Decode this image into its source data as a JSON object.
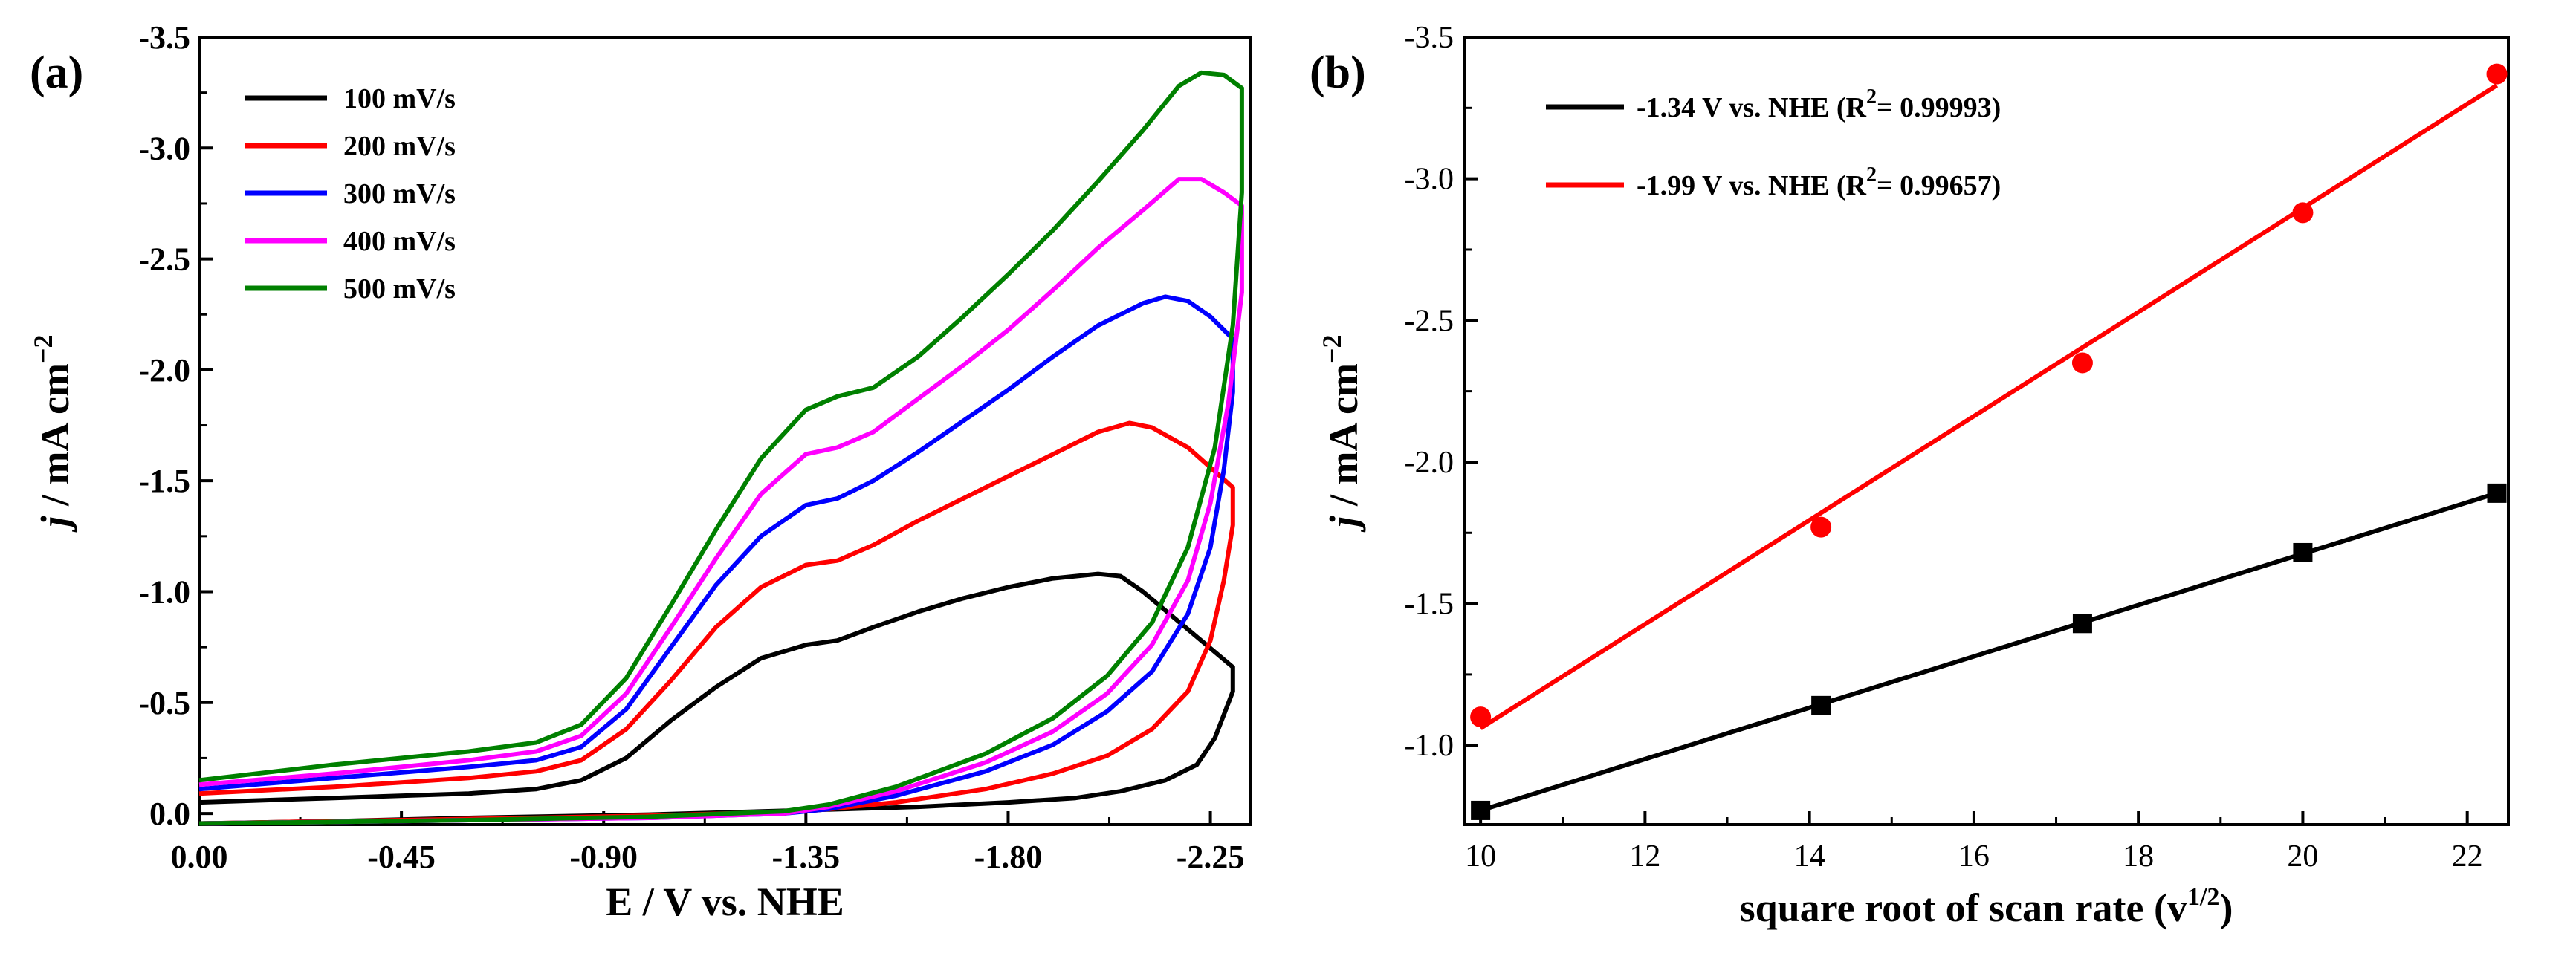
{
  "chart_data": [
    {
      "type": "line",
      "panel_label": "(a)",
      "xlabel": "E / V vs. NHE",
      "ylabel_parts": [
        "j",
        " / mA cm",
        "−2"
      ],
      "xlim": [
        0.0,
        -2.34
      ],
      "ylim": [
        0.05,
        -3.5
      ],
      "xticks": [
        0.0,
        -0.45,
        -0.9,
        -1.35,
        -1.8,
        -2.25
      ],
      "xtick_labels": [
        "0.00",
        "-0.45",
        "-0.90",
        "-1.35",
        "-1.80",
        "-2.25"
      ],
      "yticks": [
        0.0,
        -0.5,
        -1.0,
        -1.5,
        -2.0,
        -2.5,
        -3.0,
        -3.5
      ],
      "ytick_labels": [
        "0.0",
        "-0.5",
        "-1.0",
        "-1.5",
        "-2.0",
        "-2.5",
        "-3.0",
        "-3.5"
      ],
      "legend_position": "top-left",
      "series": [
        {
          "name": "100 mV/s",
          "color": "#000000",
          "points": [
            [
              0.0,
              -0.05
            ],
            [
              -0.3,
              -0.07
            ],
            [
              -0.6,
              -0.09
            ],
            [
              -0.75,
              -0.11
            ],
            [
              -0.85,
              -0.15
            ],
            [
              -0.95,
              -0.25
            ],
            [
              -1.05,
              -0.42
            ],
            [
              -1.15,
              -0.57
            ],
            [
              -1.25,
              -0.7
            ],
            [
              -1.35,
              -0.76
            ],
            [
              -1.42,
              -0.78
            ],
            [
              -1.5,
              -0.84
            ],
            [
              -1.6,
              -0.91
            ],
            [
              -1.7,
              -0.97
            ],
            [
              -1.8,
              -1.02
            ],
            [
              -1.9,
              -1.06
            ],
            [
              -2.0,
              -1.08
            ],
            [
              -2.05,
              -1.07
            ],
            [
              -2.1,
              -1.0
            ],
            [
              -2.2,
              -0.83
            ],
            [
              -2.3,
              -0.66
            ],
            [
              -2.3,
              -0.55
            ],
            [
              -2.26,
              -0.34
            ],
            [
              -2.22,
              -0.22
            ],
            [
              -2.15,
              -0.15
            ],
            [
              -2.05,
              -0.1
            ],
            [
              -1.95,
              -0.07
            ],
            [
              -1.8,
              -0.05
            ],
            [
              -1.6,
              -0.03
            ],
            [
              -1.35,
              -0.015
            ],
            [
              -1.0,
              0.005
            ],
            [
              -0.6,
              0.02
            ],
            [
              -0.3,
              0.035
            ],
            [
              0.0,
              0.045
            ]
          ]
        },
        {
          "name": "200 mV/s",
          "color": "#ff0000",
          "points": [
            [
              0.0,
              -0.09
            ],
            [
              -0.3,
              -0.12
            ],
            [
              -0.6,
              -0.16
            ],
            [
              -0.75,
              -0.19
            ],
            [
              -0.85,
              -0.24
            ],
            [
              -0.95,
              -0.38
            ],
            [
              -1.05,
              -0.6
            ],
            [
              -1.15,
              -0.84
            ],
            [
              -1.25,
              -1.02
            ],
            [
              -1.35,
              -1.12
            ],
            [
              -1.42,
              -1.14
            ],
            [
              -1.5,
              -1.21
            ],
            [
              -1.6,
              -1.32
            ],
            [
              -1.7,
              -1.42
            ],
            [
              -1.8,
              -1.52
            ],
            [
              -1.9,
              -1.62
            ],
            [
              -2.0,
              -1.72
            ],
            [
              -2.07,
              -1.76
            ],
            [
              -2.12,
              -1.74
            ],
            [
              -2.2,
              -1.65
            ],
            [
              -2.3,
              -1.47
            ],
            [
              -2.3,
              -1.3
            ],
            [
              -2.28,
              -1.05
            ],
            [
              -2.25,
              -0.78
            ],
            [
              -2.2,
              -0.55
            ],
            [
              -2.12,
              -0.38
            ],
            [
              -2.02,
              -0.26
            ],
            [
              -1.9,
              -0.18
            ],
            [
              -1.75,
              -0.11
            ],
            [
              -1.55,
              -0.05
            ],
            [
              -1.35,
              -0.01
            ],
            [
              -1.0,
              0.01
            ],
            [
              -0.6,
              0.025
            ],
            [
              -0.3,
              0.035
            ],
            [
              0.0,
              0.045
            ]
          ]
        },
        {
          "name": "300 mV/s",
          "color": "#0000ff",
          "points": [
            [
              0.0,
              -0.11
            ],
            [
              -0.3,
              -0.16
            ],
            [
              -0.6,
              -0.21
            ],
            [
              -0.75,
              -0.24
            ],
            [
              -0.85,
              -0.3
            ],
            [
              -0.95,
              -0.47
            ],
            [
              -1.05,
              -0.75
            ],
            [
              -1.15,
              -1.03
            ],
            [
              -1.25,
              -1.25
            ],
            [
              -1.35,
              -1.39
            ],
            [
              -1.42,
              -1.42
            ],
            [
              -1.5,
              -1.5
            ],
            [
              -1.6,
              -1.63
            ],
            [
              -1.7,
              -1.77
            ],
            [
              -1.8,
              -1.91
            ],
            [
              -1.9,
              -2.06
            ],
            [
              -2.0,
              -2.2
            ],
            [
              -2.1,
              -2.3
            ],
            [
              -2.15,
              -2.33
            ],
            [
              -2.2,
              -2.31
            ],
            [
              -2.25,
              -2.24
            ],
            [
              -2.3,
              -2.14
            ],
            [
              -2.3,
              -1.9
            ],
            [
              -2.28,
              -1.55
            ],
            [
              -2.25,
              -1.2
            ],
            [
              -2.2,
              -0.9
            ],
            [
              -2.12,
              -0.64
            ],
            [
              -2.02,
              -0.46
            ],
            [
              -1.9,
              -0.31
            ],
            [
              -1.75,
              -0.19
            ],
            [
              -1.55,
              -0.08
            ],
            [
              -1.4,
              -0.02
            ],
            [
              -1.3,
              0.0
            ],
            [
              -1.0,
              0.02
            ],
            [
              -0.6,
              0.03
            ],
            [
              -0.3,
              0.038
            ],
            [
              0.0,
              0.045
            ]
          ]
        },
        {
          "name": "400 mV/s",
          "color": "#ff00ff",
          "points": [
            [
              0.0,
              -0.13
            ],
            [
              -0.3,
              -0.18
            ],
            [
              -0.6,
              -0.24
            ],
            [
              -0.75,
              -0.28
            ],
            [
              -0.85,
              -0.35
            ],
            [
              -0.95,
              -0.54
            ],
            [
              -1.05,
              -0.84
            ],
            [
              -1.15,
              -1.15
            ],
            [
              -1.25,
              -1.44
            ],
            [
              -1.35,
              -1.62
            ],
            [
              -1.42,
              -1.65
            ],
            [
              -1.5,
              -1.72
            ],
            [
              -1.6,
              -1.87
            ],
            [
              -1.7,
              -2.02
            ],
            [
              -1.8,
              -2.18
            ],
            [
              -1.9,
              -2.36
            ],
            [
              -2.0,
              -2.55
            ],
            [
              -2.1,
              -2.72
            ],
            [
              -2.18,
              -2.86
            ],
            [
              -2.23,
              -2.86
            ],
            [
              -2.28,
              -2.8
            ],
            [
              -2.32,
              -2.74
            ],
            [
              -2.32,
              -2.35
            ],
            [
              -2.29,
              -1.85
            ],
            [
              -2.25,
              -1.4
            ],
            [
              -2.2,
              -1.05
            ],
            [
              -2.12,
              -0.76
            ],
            [
              -2.02,
              -0.54
            ],
            [
              -1.9,
              -0.37
            ],
            [
              -1.75,
              -0.23
            ],
            [
              -1.55,
              -0.1
            ],
            [
              -1.4,
              -0.03
            ],
            [
              -1.3,
              0.0
            ],
            [
              -1.0,
              0.02
            ],
            [
              -0.6,
              0.03
            ],
            [
              -0.3,
              0.038
            ],
            [
              0.0,
              0.045
            ]
          ]
        },
        {
          "name": "500 mV/s",
          "color": "#008000",
          "points": [
            [
              0.0,
              -0.15
            ],
            [
              -0.3,
              -0.22
            ],
            [
              -0.6,
              -0.28
            ],
            [
              -0.75,
              -0.32
            ],
            [
              -0.85,
              -0.4
            ],
            [
              -0.95,
              -0.61
            ],
            [
              -1.05,
              -0.94
            ],
            [
              -1.15,
              -1.28
            ],
            [
              -1.25,
              -1.6
            ],
            [
              -1.35,
              -1.82
            ],
            [
              -1.42,
              -1.88
            ],
            [
              -1.5,
              -1.92
            ],
            [
              -1.6,
              -2.06
            ],
            [
              -1.7,
              -2.24
            ],
            [
              -1.8,
              -2.43
            ],
            [
              -1.9,
              -2.63
            ],
            [
              -2.0,
              -2.85
            ],
            [
              -2.1,
              -3.08
            ],
            [
              -2.18,
              -3.28
            ],
            [
              -2.23,
              -3.34
            ],
            [
              -2.28,
              -3.33
            ],
            [
              -2.32,
              -3.27
            ],
            [
              -2.32,
              -2.8
            ],
            [
              -2.3,
              -2.2
            ],
            [
              -2.26,
              -1.65
            ],
            [
              -2.2,
              -1.2
            ],
            [
              -2.12,
              -0.86
            ],
            [
              -2.02,
              -0.62
            ],
            [
              -1.9,
              -0.43
            ],
            [
              -1.75,
              -0.27
            ],
            [
              -1.55,
              -0.12
            ],
            [
              -1.4,
              -0.04
            ],
            [
              -1.3,
              -0.01
            ],
            [
              -1.0,
              0.015
            ],
            [
              -0.6,
              0.03
            ],
            [
              -0.3,
              0.038
            ],
            [
              0.0,
              0.045
            ]
          ]
        }
      ]
    },
    {
      "type": "scatter",
      "panel_label": "(b)",
      "xlabel_parts": [
        "square root of scan rate (v",
        "1/2",
        ")"
      ],
      "ylabel_parts": [
        "j",
        " / mA cm",
        "−2"
      ],
      "xlim": [
        9.8,
        22.5
      ],
      "ylim": [
        -0.72,
        -3.5
      ],
      "xticks": [
        10,
        12,
        14,
        16,
        18,
        20,
        22
      ],
      "xtick_labels": [
        "10",
        "12",
        "14",
        "16",
        "18",
        "20",
        "22"
      ],
      "yticks": [
        -1.0,
        -1.5,
        -2.0,
        -2.5,
        -3.0,
        -3.5
      ],
      "ytick_labels": [
        "-1.0",
        "-1.5",
        "-2.0",
        "-2.5",
        "-3.0",
        "-3.5"
      ],
      "legend_position": "top-left",
      "series": [
        {
          "name_parts": [
            "-1.34 V vs. NHE (R",
            "2",
            "= 0.99993)"
          ],
          "color": "#000000",
          "marker": "square",
          "x": [
            10.0,
            14.14,
            17.32,
            20.0,
            22.36
          ],
          "y": [
            -0.77,
            -1.14,
            -1.43,
            -1.68,
            -1.89
          ],
          "fit": [
            [
              10.0,
              -0.77
            ],
            [
              22.36,
              -1.89
            ]
          ]
        },
        {
          "name_parts": [
            "-1.99 V vs. NHE (R",
            "2",
            "= 0.99657)"
          ],
          "color": "#ff0000",
          "marker": "circle",
          "x": [
            10.0,
            14.14,
            17.32,
            20.0,
            22.36
          ],
          "y": [
            -1.1,
            -1.77,
            -2.35,
            -2.88,
            -3.37
          ],
          "fit": [
            [
              10.0,
              -1.06
            ],
            [
              22.36,
              -3.33
            ]
          ]
        }
      ]
    }
  ]
}
